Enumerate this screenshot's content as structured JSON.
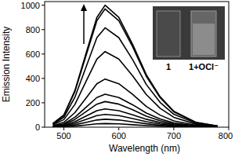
{
  "chart_data": {
    "type": "line",
    "xlabel": "Wavelength (nm)",
    "ylabel": "Emission Intensity",
    "annotations": [
      "1",
      "1+OCl⁻"
    ],
    "x": [
      480,
      500,
      520,
      540,
      560,
      575,
      600,
      625,
      650,
      675,
      700,
      740,
      780
    ],
    "series": [
      {
        "color": "#000000",
        "values": [
          30,
          100,
          300,
          600,
          900,
          1000,
          900,
          680,
          430,
          250,
          130,
          40,
          10
        ]
      },
      {
        "color": "#000000",
        "values": [
          29,
          97,
          291,
          582,
          873,
          970,
          873,
          660,
          417,
          243,
          126,
          39,
          10
        ]
      },
      {
        "color": "#000000",
        "values": [
          24,
          82,
          245,
          489,
          734,
          815,
          734,
          554,
          350,
          204,
          106,
          33,
          8
        ]
      },
      {
        "color": "#000000",
        "values": [
          19,
          62,
          186,
          372,
          558,
          620,
          558,
          422,
          267,
          155,
          81,
          25,
          6
        ]
      },
      {
        "color": "#000000",
        "values": [
          12,
          40,
          119,
          237,
          356,
          395,
          356,
          269,
          170,
          99,
          51,
          16,
          4
        ]
      },
      {
        "color": "#000000",
        "values": [
          8,
          27,
          81,
          162,
          243,
          270,
          243,
          184,
          116,
          68,
          35,
          11,
          3
        ]
      },
      {
        "color": "#000000",
        "values": [
          6,
          21,
          63,
          126,
          189,
          210,
          189,
          143,
          90,
          53,
          27,
          8,
          2
        ]
      },
      {
        "color": "#000000",
        "values": [
          5,
          15,
          45,
          90,
          135,
          150,
          135,
          102,
          65,
          38,
          20,
          6,
          2
        ]
      },
      {
        "color": "#000000",
        "values": [
          3,
          11,
          32,
          63,
          95,
          105,
          95,
          71,
          45,
          26,
          14,
          4,
          1
        ]
      },
      {
        "color": "#000000",
        "values": [
          2,
          7,
          20,
          39,
          59,
          65,
          59,
          44,
          28,
          16,
          8,
          3,
          1
        ]
      },
      {
        "color": "#000000",
        "values": [
          1,
          3,
          9,
          18,
          27,
          30,
          27,
          20,
          13,
          8,
          4,
          1,
          0
        ]
      }
    ],
    "xlim": [
      465,
      800
    ],
    "ylim": [
      0,
      1030
    ],
    "xticks": [
      500,
      600,
      700,
      800
    ],
    "yticks": [
      0,
      200,
      400,
      600,
      800,
      1000
    ]
  }
}
